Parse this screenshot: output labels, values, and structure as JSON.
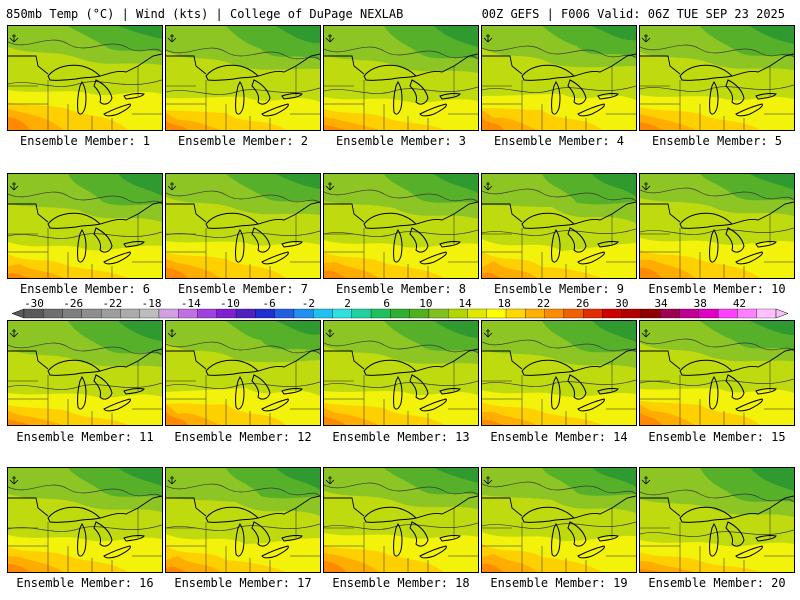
{
  "header": {
    "left_title": "850mb Temp (°C) | Wind (kts) | College of DuPage NEXLAB",
    "right_title": "00Z GEFS | F006 Valid: 06Z TUE SEP 23 2025"
  },
  "panel_label_prefix": "Ensemble Member:",
  "members": [
    {
      "label": "Ensemble Member: 1"
    },
    {
      "label": "Ensemble Member: 2"
    },
    {
      "label": "Ensemble Member: 3"
    },
    {
      "label": "Ensemble Member: 4"
    },
    {
      "label": "Ensemble Member: 5"
    },
    {
      "label": "Ensemble Member: 6"
    },
    {
      "label": "Ensemble Member: 7"
    },
    {
      "label": "Ensemble Member: 8"
    },
    {
      "label": "Ensemble Member: 9"
    },
    {
      "label": "Ensemble Member: 10"
    },
    {
      "label": "Ensemble Member: 11"
    },
    {
      "label": "Ensemble Member: 12"
    },
    {
      "label": "Ensemble Member: 13"
    },
    {
      "label": "Ensemble Member: 14"
    },
    {
      "label": "Ensemble Member: 15"
    },
    {
      "label": "Ensemble Member: 16"
    },
    {
      "label": "Ensemble Member: 17"
    },
    {
      "label": "Ensemble Member: 18"
    },
    {
      "label": "Ensemble Member: 19"
    },
    {
      "label": "Ensemble Member: 20"
    }
  ],
  "colorbar": {
    "unit": "°C",
    "tick_labels": [
      "-30",
      "-26",
      "-22",
      "-18",
      "-14",
      "-10",
      "-6",
      "-2",
      "2",
      "6",
      "10",
      "14",
      "18",
      "22",
      "26",
      "30",
      "34",
      "38",
      "42"
    ],
    "colors": [
      "#5a5a5a",
      "#6e6e6e",
      "#7f7f7f",
      "#8e8e8e",
      "#9d9d9d",
      "#ababab",
      "#bdbdbd",
      "#d0a0e0",
      "#c070e0",
      "#a040e0",
      "#8020d0",
      "#5020c0",
      "#2030d0",
      "#2060e0",
      "#2090f0",
      "#20c0f0",
      "#30e0e0",
      "#20d0a0",
      "#20c060",
      "#30b030",
      "#50b020",
      "#80c020",
      "#b0d800",
      "#e0e800",
      "#ffff00",
      "#ffd800",
      "#ffb000",
      "#ff8c00",
      "#f06000",
      "#e03000",
      "#d00000",
      "#b00000",
      "#900000",
      "#a00050",
      "#c00090",
      "#e000c0",
      "#ff40ff",
      "#ff80ff",
      "#ffc0ff"
    ]
  },
  "field_colors": {
    "green_dark": "#2f9a2f",
    "green": "#56b02a",
    "green_light": "#8cc524",
    "yellow_green": "#bfdb10",
    "yellow": "#f2f20a",
    "gold": "#ffd000",
    "orange": "#ffad00",
    "orange_dark": "#ff8a00"
  }
}
